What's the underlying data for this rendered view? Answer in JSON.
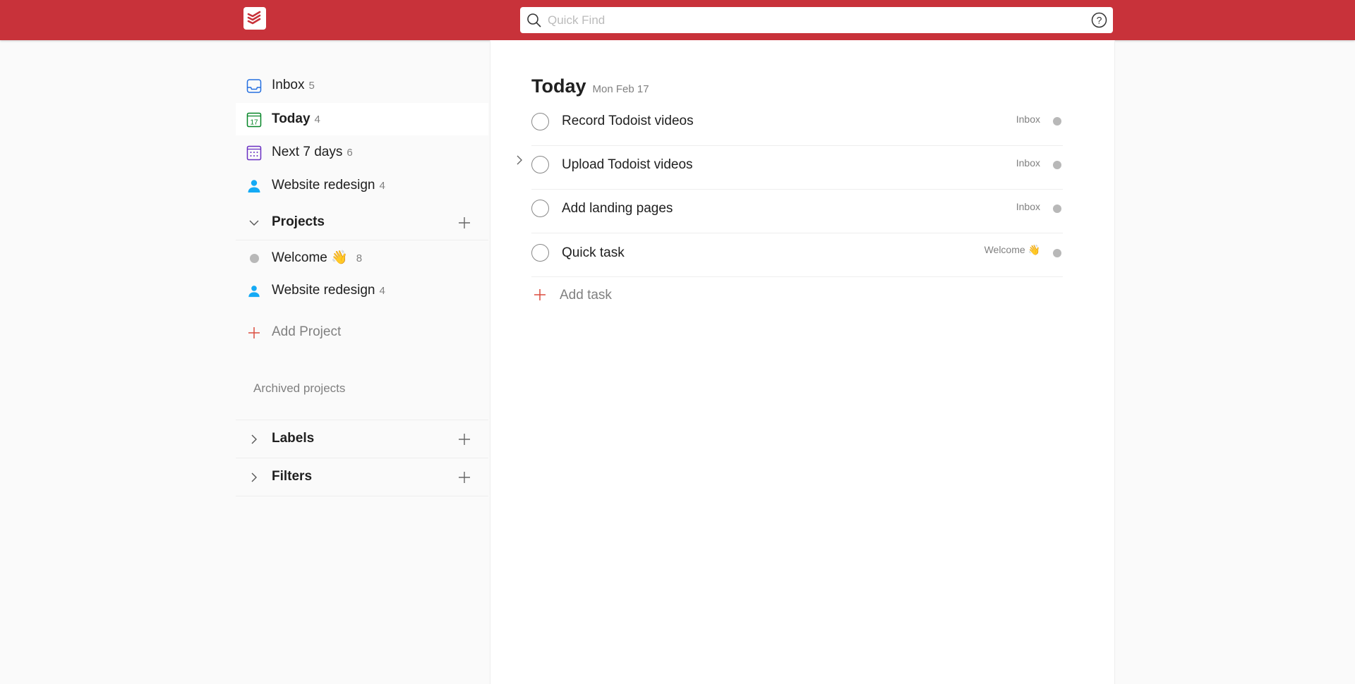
{
  "header": {
    "search_placeholder": "Quick Find",
    "brand_color": "#c8323a"
  },
  "sidebar": {
    "items": [
      {
        "label": "Inbox",
        "count": "5",
        "icon": "inbox-icon"
      },
      {
        "label": "Today",
        "count": "4",
        "icon": "calendar-today-icon"
      },
      {
        "label": "Next 7 days",
        "count": "6",
        "icon": "calendar-week-icon"
      },
      {
        "label": "Website redesign",
        "count": "4",
        "icon": "person-icon"
      }
    ],
    "projects_label": "Projects",
    "projects": [
      {
        "label": "Welcome 👋",
        "count": "8"
      },
      {
        "label": "Website redesign",
        "count": "4"
      }
    ],
    "add_project": "Add Project",
    "archived": "Archived projects",
    "labels": "Labels",
    "filters": "Filters"
  },
  "main": {
    "title": "Today",
    "date": "Mon Feb 17",
    "tasks": [
      {
        "text": "Record Todoist videos",
        "project": "Inbox"
      },
      {
        "text": "Upload Todoist videos",
        "project": "Inbox"
      },
      {
        "text": "Add landing pages",
        "project": "Inbox"
      },
      {
        "text": "Quick task",
        "project": "Welcome 👋"
      }
    ],
    "add_task": "Add task"
  }
}
